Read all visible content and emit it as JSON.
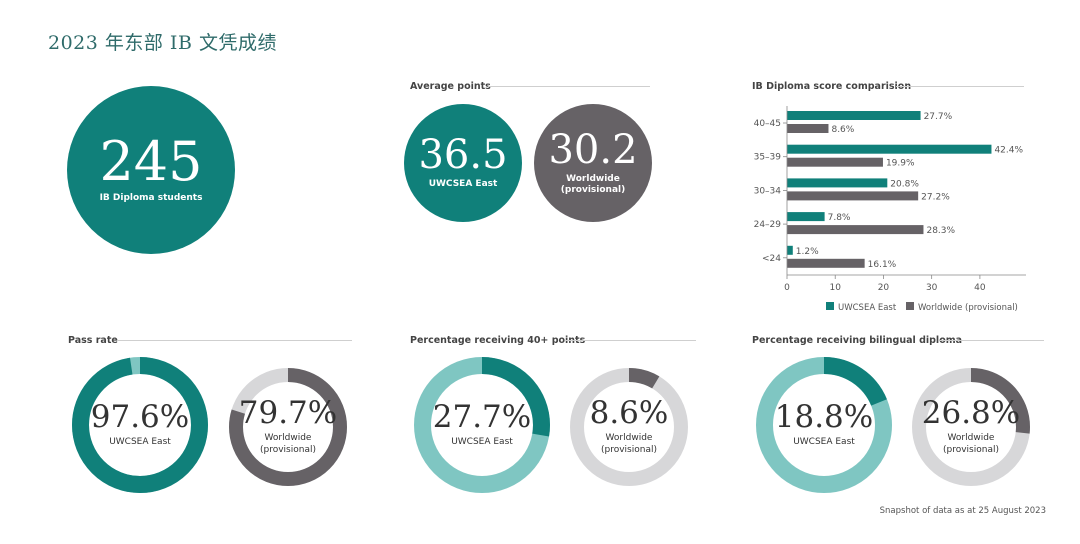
{
  "page_title": "2023 年东部 IB 文凭成绩",
  "colors": {
    "teal": "#10807a",
    "teal_light": "#7fc6c2",
    "gray": "#666266",
    "gray_light": "#d7d7d9",
    "title": "#2f6b6a"
  },
  "students": {
    "count": "245",
    "label": "IB Diploma students"
  },
  "average_points": {
    "section_label": "Average points",
    "east": {
      "value": "36.5",
      "label": "UWCSEA East"
    },
    "world": {
      "value": "30.2",
      "label_line1": "Worldwide",
      "label_line2": "(provisional)"
    }
  },
  "pass_rate": {
    "section_label": "Pass rate",
    "east": {
      "pct": "97.6%",
      "value": 97.6,
      "label": "UWCSEA East"
    },
    "world": {
      "pct": "79.7%",
      "value": 79.7,
      "label_line1": "Worldwide",
      "label_line2": "(provisional)"
    }
  },
  "pct_40plus": {
    "section_label": "Percentage receiving 40+ points",
    "east": {
      "pct": "27.7%",
      "value": 27.7,
      "label": "UWCSEA East"
    },
    "world": {
      "pct": "8.6%",
      "value": 8.6,
      "label_line1": "Worldwide",
      "label_line2": "(provisional)"
    }
  },
  "bilingual": {
    "section_label": "Percentage receiving bilingual diploma",
    "east": {
      "pct": "18.8%",
      "value": 18.8,
      "label": "UWCSEA East"
    },
    "world": {
      "pct": "26.8%",
      "value": 26.8,
      "label_line1": "Worldwide",
      "label_line2": "(provisional)"
    }
  },
  "footnote": "Snapshot of data as at 25 August 2023",
  "chart_data": {
    "type": "bar",
    "orientation": "horizontal",
    "title": "IB Diploma score comparision",
    "categories": [
      "40–45",
      "35–39",
      "30–34",
      "24–29",
      "<24"
    ],
    "series": [
      {
        "name": "UWCSEA East",
        "values": [
          27.7,
          42.4,
          20.8,
          7.8,
          1.2
        ],
        "labels": [
          "27.7%",
          "42.4%",
          "20.8%",
          "7.8%",
          "1.2%"
        ]
      },
      {
        "name": "Worldwide (provisional)",
        "values": [
          8.6,
          19.9,
          27.2,
          28.3,
          16.1
        ],
        "labels": [
          "8.6%",
          "19.9%",
          "27.2%",
          "28.3%",
          "16.1%"
        ]
      }
    ],
    "xlim": [
      0,
      45
    ],
    "xticks": [
      "0",
      "10",
      "20",
      "30",
      "40"
    ],
    "xtick_values": [
      0,
      10,
      20,
      30,
      40
    ],
    "legend": "bottom"
  }
}
